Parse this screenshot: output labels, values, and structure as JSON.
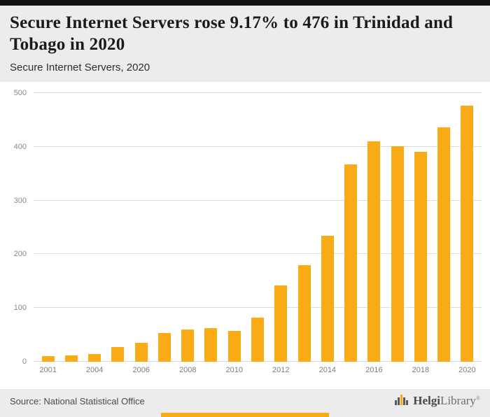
{
  "header": {
    "title": "Secure Internet Servers rose 9.17% to 476 in Trinidad and Tobago in 2020",
    "subtitle": "Secure Internet Servers, 2020"
  },
  "chart_data": {
    "type": "bar",
    "title": "Secure Internet Servers rose 9.17% to 476 in Trinidad and Tobago in 2020",
    "subtitle": "Secure Internet Servers, 2020",
    "categories": [
      "2001",
      "2002",
      "2004",
      "2005",
      "2006",
      "2007",
      "2008",
      "2009",
      "2010",
      "2011",
      "2012",
      "2013",
      "2014",
      "2015",
      "2016",
      "2017",
      "2018",
      "2019",
      "2020"
    ],
    "values": [
      11,
      12,
      14,
      28,
      35,
      54,
      60,
      62,
      57,
      82,
      142,
      180,
      234,
      367,
      410,
      401,
      390,
      436,
      476
    ],
    "xlabel": "",
    "ylabel": "",
    "ylim": [
      0,
      500
    ],
    "yticks": [
      0,
      100,
      200,
      300,
      400,
      500
    ],
    "xticks_shown": [
      "2001",
      "2004",
      "2006",
      "2008",
      "2010",
      "2012",
      "2014",
      "2016",
      "2018",
      "2020"
    ],
    "legend": "none",
    "grid": "horizontal",
    "bar_color": "#F9AB16"
  },
  "footer": {
    "source": "Source: National Statistical Office",
    "brand": {
      "bold": "Helgi",
      "light": "Library",
      "registered": "®"
    }
  },
  "colors": {
    "accent": "#F9AB16",
    "top_bar": "#121212",
    "header_bg": "#ECECEC",
    "footer_bg": "#ECECEC",
    "chart_bg": "#FFFFFF",
    "grid_line": "#DDDDDD",
    "axis_text": "#8A8A8A",
    "title_text": "#1A1A1A"
  }
}
